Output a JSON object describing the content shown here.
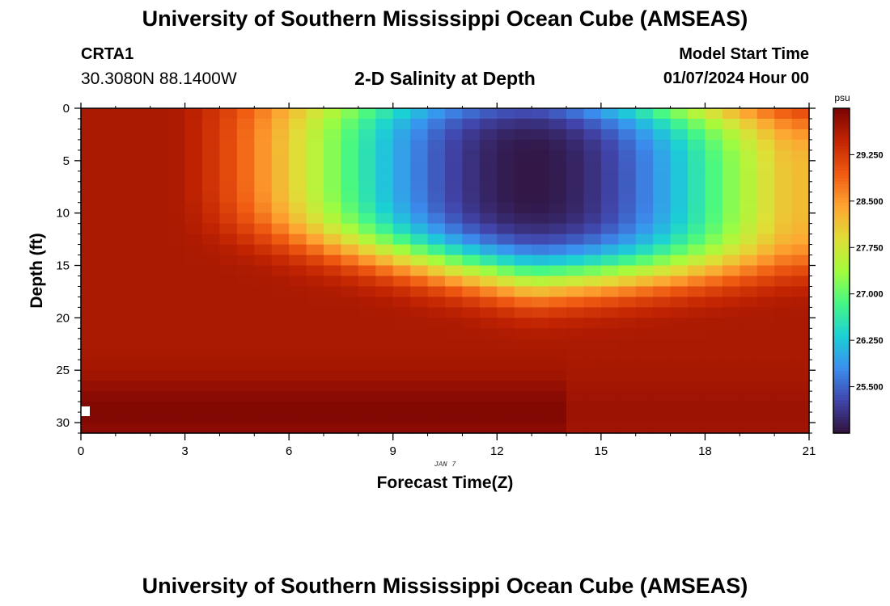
{
  "header": {
    "title": "University of Southern Mississippi Ocean Cube (AMSEAS)",
    "station": "CRTA1",
    "location": "30.3080N  88.1400W",
    "subtitle": "2-D Salinity at Depth",
    "model_start_label": "Model Start Time",
    "model_start_value": "01/07/2024 Hour 00"
  },
  "footer": {
    "title": "University of Southern Mississippi Ocean Cube (AMSEAS)"
  },
  "chart_data": {
    "type": "heatmap",
    "title": "2-D Salinity at Depth",
    "xlabel": "Forecast Time(Z)",
    "ylabel": "Depth (ft)",
    "date_label": "JAN 7",
    "x_ticks": [
      0,
      3,
      6,
      9,
      12,
      15,
      18,
      21
    ],
    "y_ticks": [
      0,
      5,
      10,
      15,
      20,
      25,
      30
    ],
    "xlim": [
      0,
      21
    ],
    "ylim": [
      31,
      0
    ],
    "colorbar": {
      "unit": "psu",
      "ticks": [
        "29.250",
        "28.500",
        "27.750",
        "27.000",
        "26.250",
        "25.500"
      ],
      "tick_values": [
        29.25,
        28.5,
        27.75,
        27.0,
        26.25,
        25.5
      ],
      "range": [
        24.75,
        30.0
      ]
    },
    "grid": {
      "nx": 42,
      "ny": 31
    },
    "field": {
      "background": 29.65,
      "low_core": {
        "t": 13,
        "depth": 6.5,
        "value": 24.8
      },
      "low_extent_hours": [
        2.5,
        20.5
      ],
      "high_bottom_band": {
        "depth": 29,
        "value": 29.95
      }
    },
    "colors": [
      "#30123b",
      "#4145ab",
      "#3b8ff0",
      "#1bd0d5",
      "#46f884",
      "#a4fc3c",
      "#e1dd37",
      "#fea331",
      "#ef5911",
      "#c22402",
      "#7a0403"
    ]
  }
}
